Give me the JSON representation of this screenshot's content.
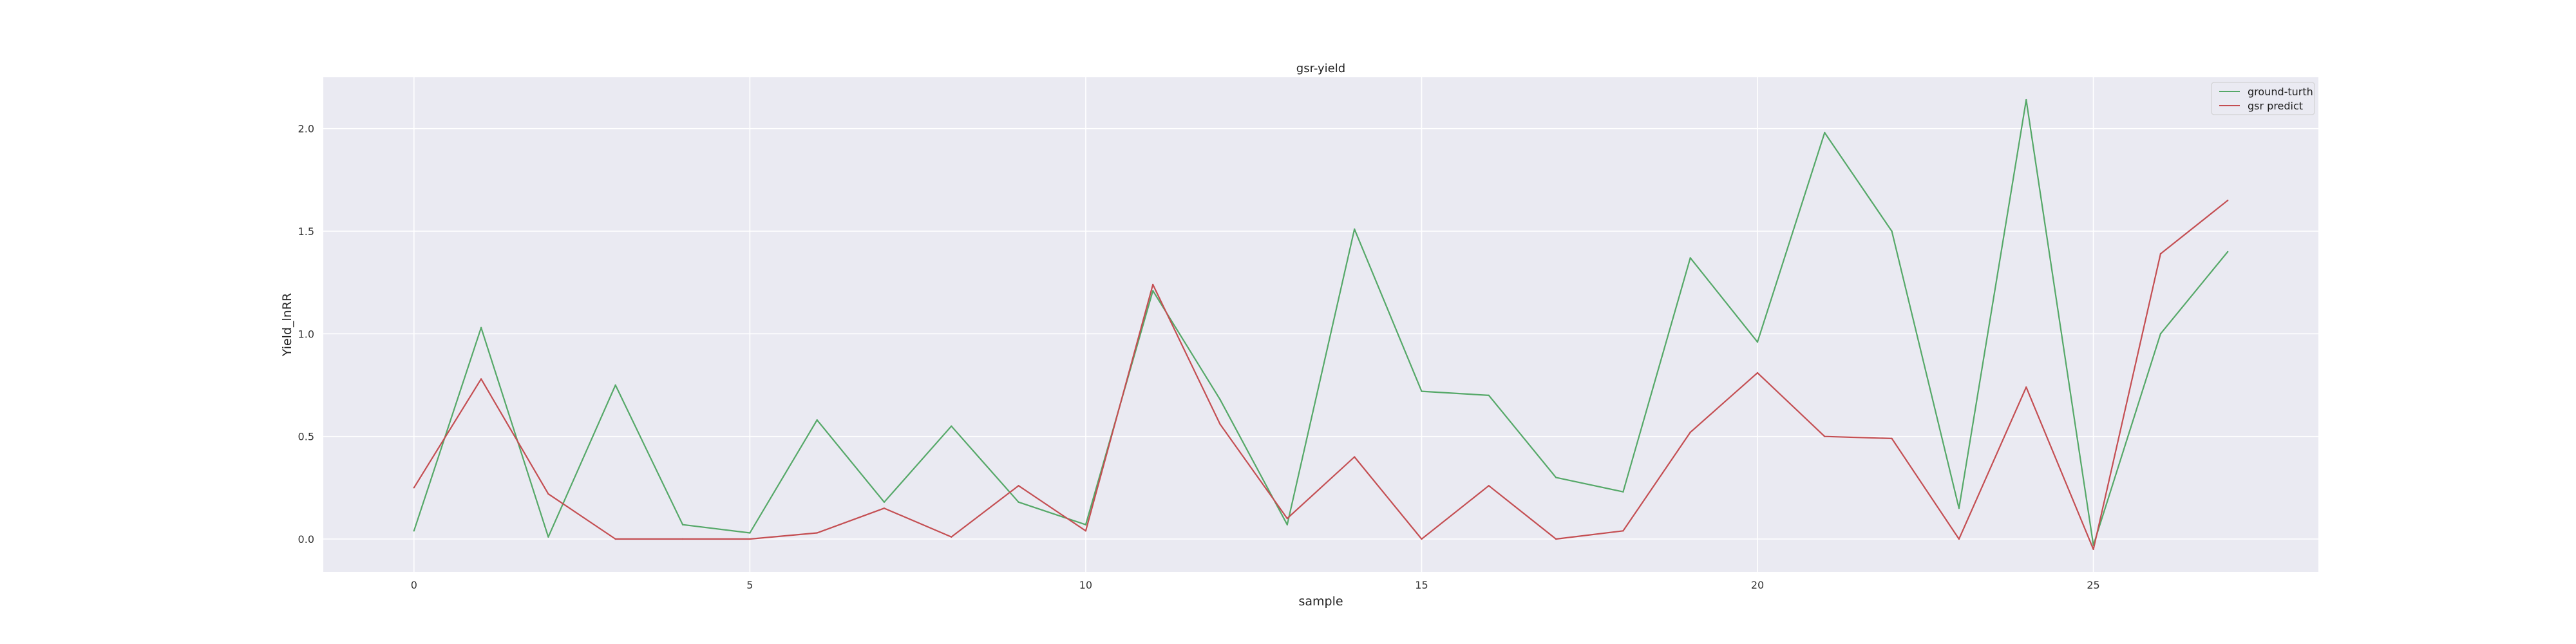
{
  "chart_data": {
    "type": "line",
    "title": "gsr-yield",
    "xlabel": "sample",
    "ylabel": "Yield_lnRR",
    "xlim": [
      -1.35,
      28.35
    ],
    "ylim": [
      -0.16,
      2.25
    ],
    "x_ticks": [
      0,
      5,
      10,
      15,
      20,
      25
    ],
    "x_tick_labels": [
      "0",
      "5",
      "10",
      "15",
      "20",
      "25"
    ],
    "y_ticks": [
      0.0,
      0.5,
      1.0,
      1.5,
      2.0
    ],
    "y_tick_labels": [
      "0.0",
      "0.5",
      "1.0",
      "1.5",
      "2.0"
    ],
    "grid": true,
    "background_color": "#eaeaf2",
    "legend_position": "top-right",
    "x": [
      0,
      1,
      2,
      3,
      4,
      5,
      6,
      7,
      8,
      9,
      10,
      11,
      12,
      13,
      14,
      15,
      16,
      17,
      18,
      19,
      20,
      21,
      22,
      23,
      24,
      25,
      26,
      27
    ],
    "series": [
      {
        "name": "ground-turth",
        "color": "#55a868",
        "values": [
          0.04,
          1.03,
          0.01,
          0.75,
          0.07,
          0.03,
          0.58,
          0.18,
          0.55,
          0.18,
          0.07,
          1.21,
          0.68,
          0.07,
          1.51,
          0.72,
          0.7,
          0.3,
          0.23,
          1.37,
          0.96,
          1.98,
          1.5,
          0.15,
          2.14,
          -0.03,
          1.0,
          1.4
        ]
      },
      {
        "name": "gsr predict",
        "color": "#c44e52",
        "values": [
          0.25,
          0.78,
          0.22,
          0.0,
          0.0,
          0.0,
          0.03,
          0.15,
          0.01,
          0.26,
          0.04,
          1.24,
          0.56,
          0.1,
          0.4,
          0.0,
          0.26,
          0.0,
          0.04,
          0.52,
          0.81,
          0.5,
          0.49,
          0.0,
          0.74,
          -0.05,
          1.39,
          1.65
        ]
      }
    ]
  }
}
